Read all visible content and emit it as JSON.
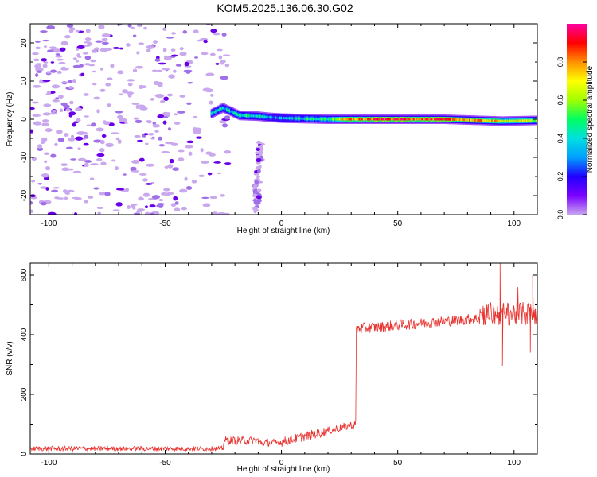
{
  "figure": {
    "title": "KOM5.2025.136.06.30.G02"
  },
  "colors": {
    "snr_line": "#e8302c",
    "blob_light": "#c9a8ee",
    "blob_mid": "#a070e8",
    "blob_dark": "#6a00e8",
    "axis": "#000000"
  },
  "chart_data": [
    {
      "type": "heatmap",
      "title": "KOM5.2025.136.06.30.G02",
      "xlabel": "Height of straight line (km)",
      "ylabel": "Frequency (Hz)",
      "xlim": [
        -108,
        110
      ],
      "ylim": [
        -25,
        25
      ],
      "xticks": [
        -100,
        -50,
        0,
        50,
        100
      ],
      "yticks": [
        -20,
        -10,
        0,
        10,
        20
      ],
      "colorbar": {
        "label": "Normalized spectral amplitude",
        "range": [
          0,
          1
        ],
        "ticks": [
          "0.0",
          "0.2",
          "0.4",
          "0.6",
          "0.8"
        ],
        "colormap": [
          "#c8a4f0",
          "#7a00ff",
          "#2000ff",
          "#00a0ff",
          "#00e0e0",
          "#00ff60",
          "#a0ff00",
          "#ffff00",
          "#ff9000",
          "#ff0000",
          "#ff00a0"
        ]
      },
      "main_band": {
        "description_points": [
          {
            "x": -30,
            "y": 1.5,
            "amp": 0.35
          },
          {
            "x": -25,
            "y": 3,
            "amp": 0.4
          },
          {
            "x": -18,
            "y": 1,
            "amp": 0.45
          },
          {
            "x": -10,
            "y": 0.8,
            "amp": 0.45
          },
          {
            "x": -5,
            "y": 0.5,
            "amp": 0.3
          },
          {
            "x": 0,
            "y": 0.3,
            "amp": 0.35
          },
          {
            "x": 20,
            "y": 0,
            "amp": 0.5
          },
          {
            "x": 30,
            "y": 0,
            "amp": 0.8
          },
          {
            "x": 50,
            "y": 0,
            "amp": 0.9
          },
          {
            "x": 70,
            "y": 0,
            "amp": 0.85
          },
          {
            "x": 95,
            "y": -0.5,
            "amp": 0.7
          },
          {
            "x": 110,
            "y": -0.3,
            "amp": 0.6
          }
        ]
      },
      "noise_region": {
        "x_range": [
          -108,
          -30
        ],
        "y_range": [
          -25,
          25
        ]
      },
      "secondary_trace": {
        "x_range": [
          -15,
          -2
        ],
        "y_range": [
          -25,
          -6
        ]
      }
    },
    {
      "type": "line",
      "xlabel": "Height of straight line (km)",
      "ylabel": "SNR (v/v)",
      "xlim": [
        -108,
        110
      ],
      "ylim": [
        0,
        640
      ],
      "xticks": [
        -100,
        -50,
        0,
        50,
        100
      ],
      "yticks": [
        0,
        200,
        400,
        600
      ],
      "series": [
        {
          "segments": [
            {
              "x_from": -108,
              "x_to": -25,
              "level": 18,
              "noise": 8
            },
            {
              "x_from": -25,
              "x_to": -10,
              "level": 45,
              "noise": 14
            },
            {
              "x_from": -10,
              "x_to": 0,
              "level": 38,
              "noise": 12
            },
            {
              "x_from": 0,
              "x_to": 20,
              "level": 65,
              "noise": 16
            },
            {
              "x_from": 20,
              "x_to": 32,
              "level": 95,
              "noise": 14
            },
            {
              "x_from": 32,
              "x_to": 50,
              "level": 420,
              "noise": 18
            },
            {
              "x_from": 50,
              "x_to": 85,
              "level": 445,
              "noise": 18
            },
            {
              "x_from": 85,
              "x_to": 110,
              "level": 470,
              "noise": 40
            }
          ],
          "spikes": [
            {
              "x": 94,
              "y": 640
            },
            {
              "x": 95,
              "y": 295
            },
            {
              "x": 108,
              "y": 600
            },
            {
              "x": 107,
              "y": 340
            }
          ]
        }
      ]
    }
  ]
}
